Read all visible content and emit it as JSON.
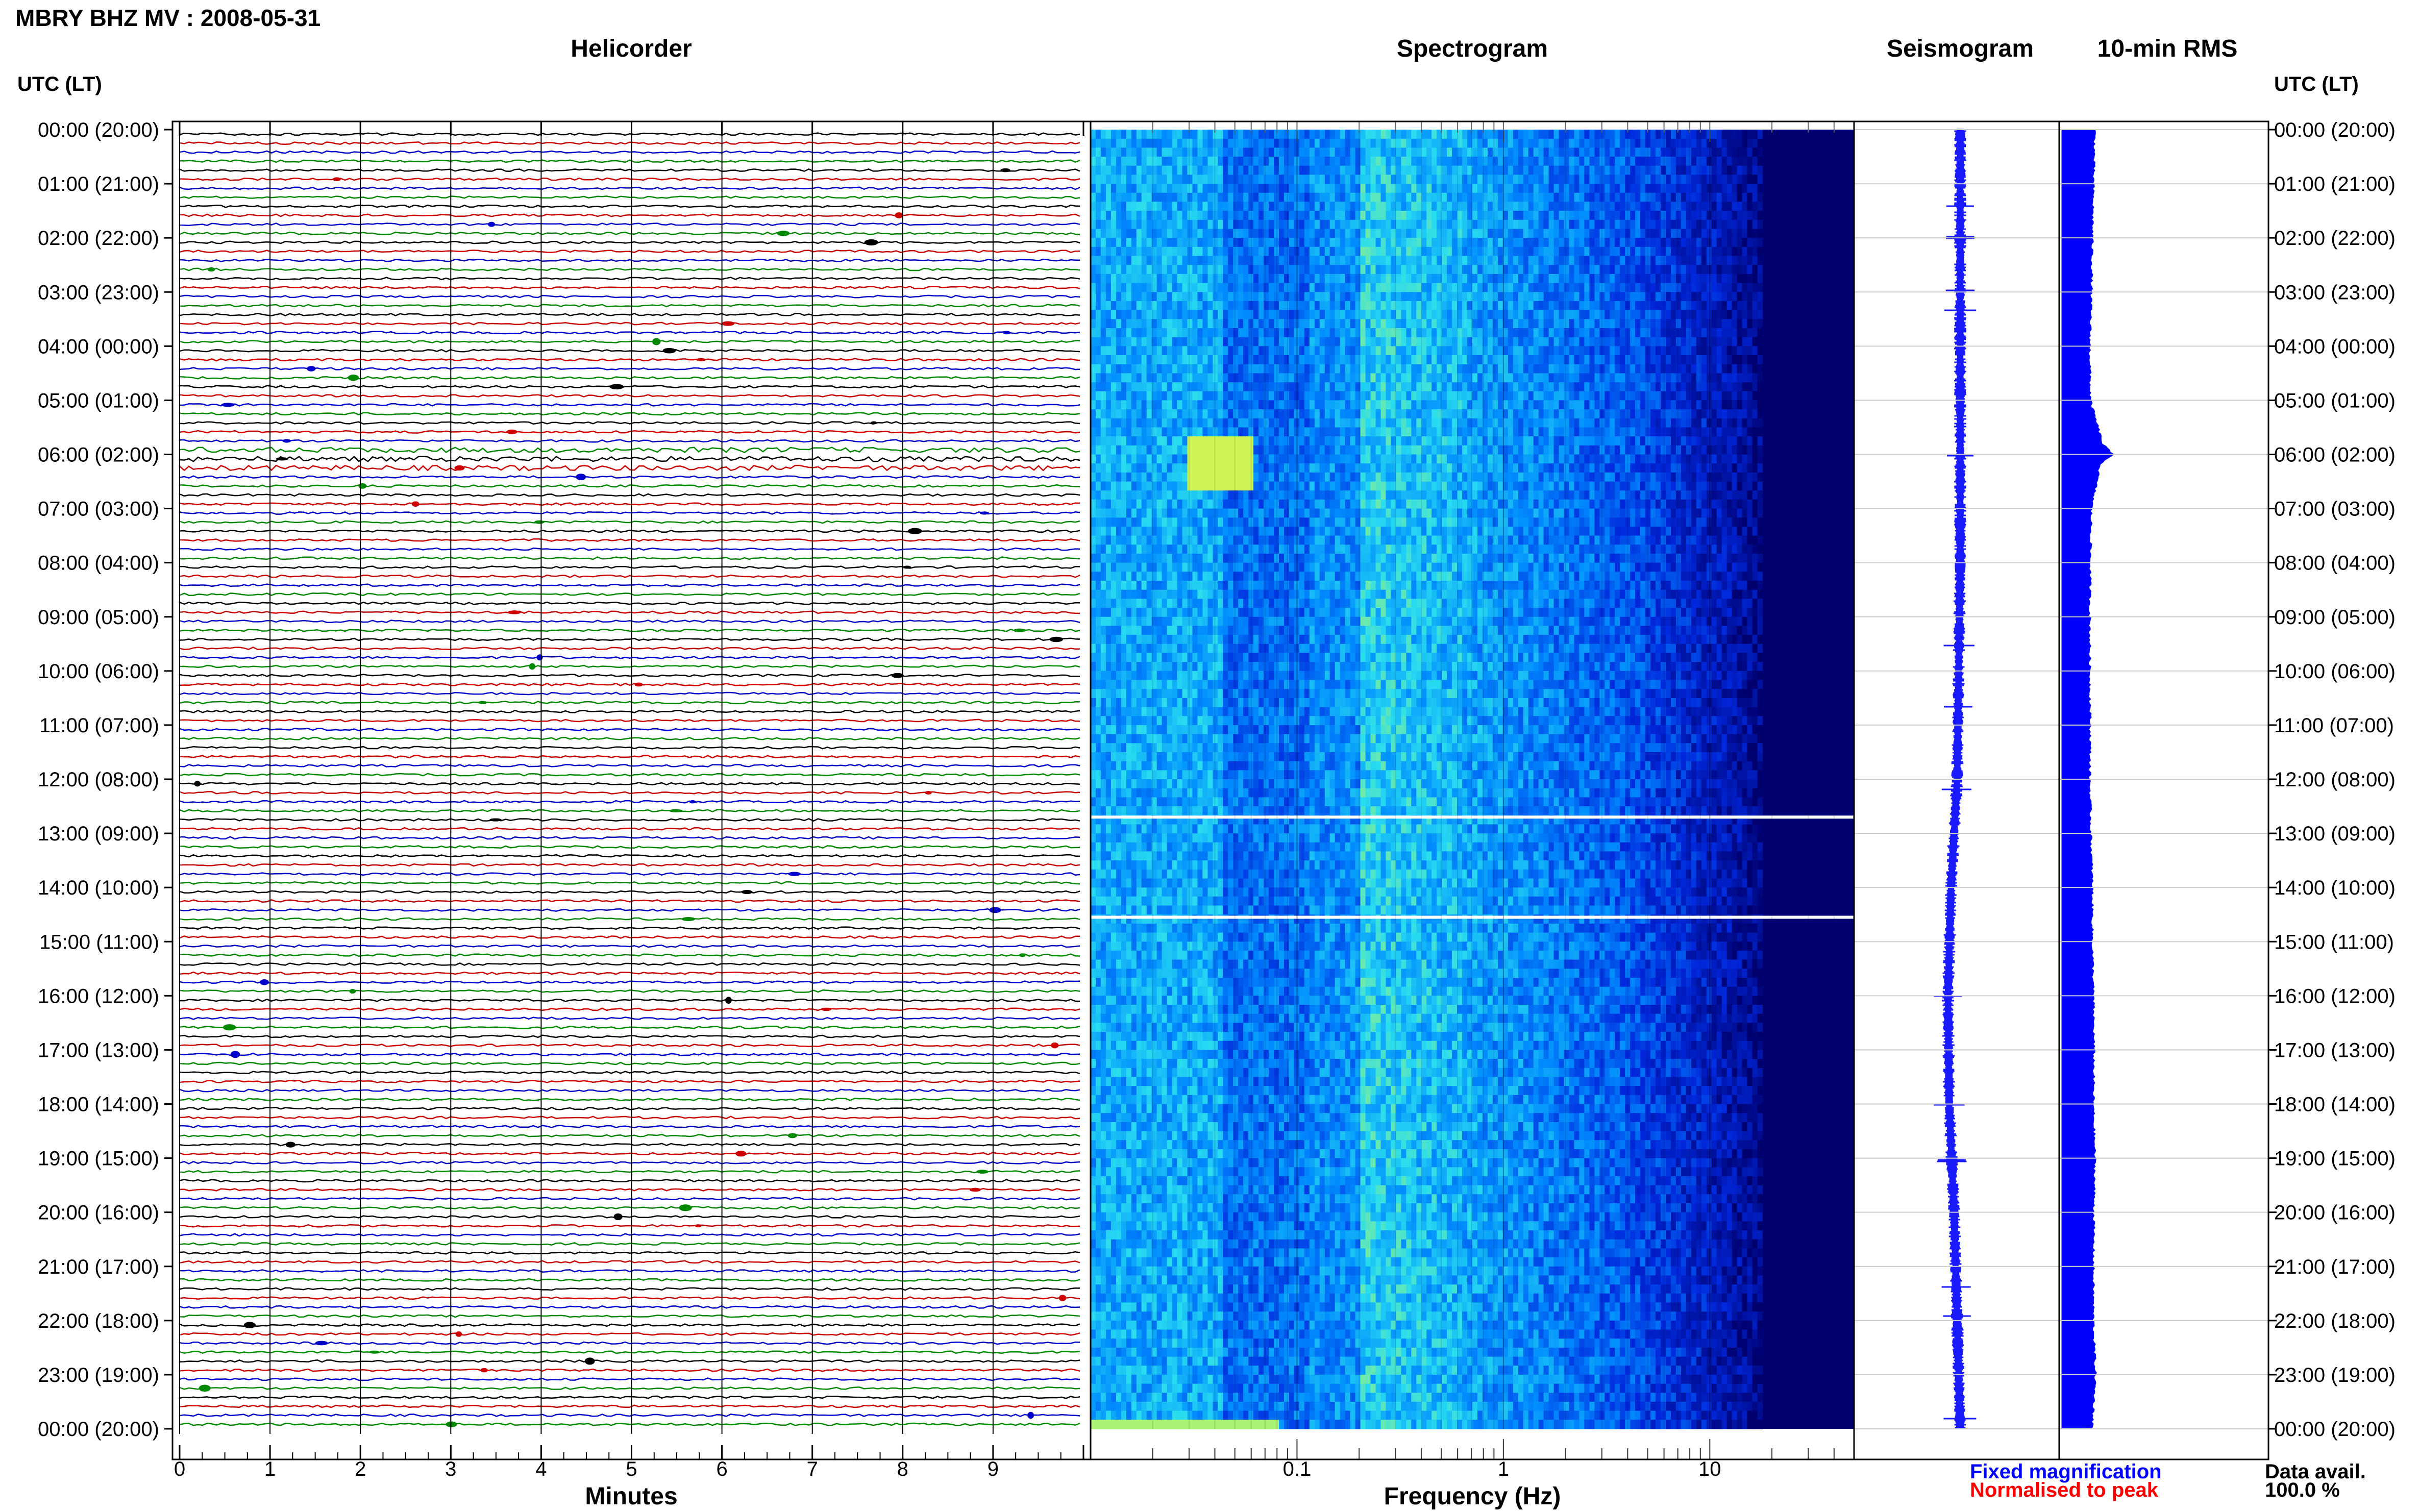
{
  "title": "MBRY BHZ MV : 2008-05-31",
  "time_axis_label": "UTC (LT)",
  "panels": {
    "helicorder": "Helicorder",
    "spectrogram": "Spectrogram",
    "seismogram": "Seismogram",
    "rms": "10-min RMS"
  },
  "hour_labels": [
    "00:00 (20:00)",
    "01:00 (21:00)",
    "02:00 (22:00)",
    "03:00 (23:00)",
    "04:00 (00:00)",
    "05:00 (01:00)",
    "06:00 (02:00)",
    "07:00 (03:00)",
    "08:00 (04:00)",
    "09:00 (05:00)",
    "10:00 (06:00)",
    "11:00 (07:00)",
    "12:00 (08:00)",
    "13:00 (09:00)",
    "14:00 (10:00)",
    "15:00 (11:00)",
    "16:00 (12:00)",
    "17:00 (13:00)",
    "18:00 (14:00)",
    "19:00 (15:00)",
    "20:00 (16:00)",
    "21:00 (17:00)",
    "22:00 (18:00)",
    "23:00 (19:00)",
    "00:00 (20:00)"
  ],
  "helicorder_axis": {
    "label": "Minutes",
    "ticks": [
      "0",
      "1",
      "2",
      "3",
      "4",
      "5",
      "6",
      "7",
      "8",
      "9"
    ],
    "range": [
      0,
      10
    ],
    "trace_colors": [
      "#000000",
      "#cc0000",
      "#0000cc",
      "#008800"
    ]
  },
  "spectrogram_axis": {
    "label": "Frequency (Hz)",
    "ticks": [
      "0.1",
      "1",
      "10"
    ],
    "tick_values": [
      0.1,
      1,
      10
    ],
    "range": [
      0.01,
      50
    ],
    "scale": "log"
  },
  "legend": {
    "fixed": "Fixed magnification",
    "fixed_color": "#0000ff",
    "normalised": "Normalised to peak",
    "normalised_color": "#ff0000"
  },
  "data_availability": {
    "label": "Data avail.",
    "value": "100.0 %"
  },
  "chart_data": {
    "type": "heatmap",
    "title": "MBRY BHZ MV : 2008-05-31",
    "time_range_hours": [
      0,
      24
    ],
    "helicorder_rows": 144,
    "gaps_hours": [
      12.7,
      14.55
    ],
    "spectrogram_feature": {
      "frequency_hz": [
        0.03,
        0.06
      ],
      "time_hours": [
        5.7,
        6.6
      ],
      "description_visible": false
    },
    "rms_series": {
      "x_hours": [
        0,
        1,
        2,
        3,
        4,
        5,
        5.8,
        6,
        6.2,
        7,
        8,
        9,
        10,
        11,
        12,
        13,
        14,
        15,
        16,
        17,
        18,
        19,
        20,
        21,
        22,
        23,
        24
      ],
      "values": [
        0.65,
        0.62,
        0.6,
        0.58,
        0.55,
        0.56,
        0.8,
        1.0,
        0.75,
        0.58,
        0.56,
        0.55,
        0.55,
        0.56,
        0.55,
        0.57,
        0.6,
        0.6,
        0.62,
        0.63,
        0.62,
        0.65,
        0.63,
        0.62,
        0.62,
        0.66,
        0.6
      ]
    },
    "seismogram_drift": {
      "x_hours": [
        0,
        4,
        8,
        12,
        14,
        16,
        18,
        20,
        22,
        24
      ],
      "offset": [
        0.0,
        0.0,
        0.0,
        -0.05,
        -0.15,
        -0.2,
        -0.18,
        -0.1,
        -0.05,
        0.0
      ]
    }
  }
}
